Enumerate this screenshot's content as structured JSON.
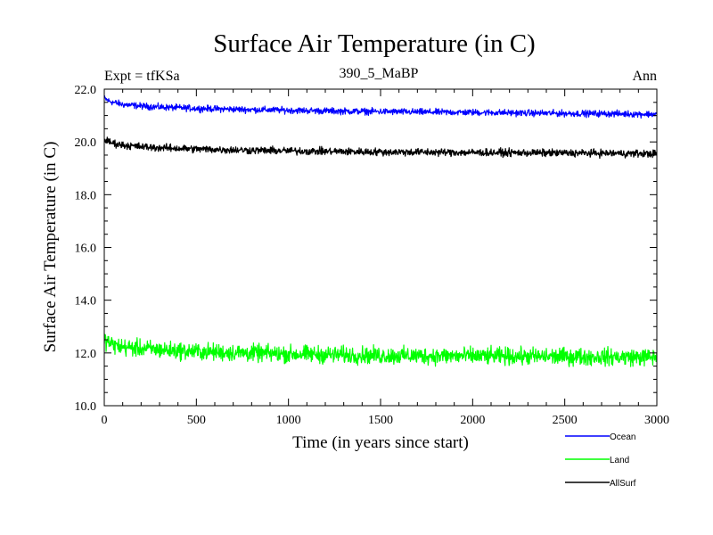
{
  "chart_data": {
    "type": "line",
    "title": "Surface Air Temperature (in C)",
    "subtitle_left": "Expt = tfKSa",
    "subtitle_center": "390_5_MaBP",
    "subtitle_right": "Ann",
    "xlabel": "Time (in years since start)",
    "ylabel": "Surface Air Temperature (in C)",
    "xlim": [
      0,
      3000
    ],
    "ylim": [
      10.0,
      22.0
    ],
    "xticks": [
      0,
      500,
      1000,
      1500,
      2000,
      2500,
      3000
    ],
    "xtick_labels": [
      "0",
      "500",
      "1000",
      "1500",
      "2000",
      "2500",
      "3000"
    ],
    "yticks": [
      10,
      12,
      14,
      16,
      18,
      20,
      22
    ],
    "ytick_labels": [
      "10.0",
      "12.0",
      "14.0",
      "16.0",
      "18.0",
      "20.0",
      "22.0"
    ],
    "grid": false,
    "legend_position": "bottom-right",
    "series": [
      {
        "name": "Ocean",
        "color": "#0000ff",
        "noise": 0.06,
        "x": [
          0,
          25,
          50,
          100,
          200,
          300,
          500,
          750,
          1000,
          1250,
          1500,
          1750,
          2000,
          2250,
          2500,
          2750,
          3000
        ],
        "y": [
          21.65,
          21.55,
          21.5,
          21.42,
          21.36,
          21.32,
          21.27,
          21.23,
          21.2,
          21.17,
          21.15,
          21.13,
          21.12,
          21.1,
          21.08,
          21.07,
          21.05
        ]
      },
      {
        "name": "Land",
        "color": "#00ff00",
        "noise": 0.16,
        "x": [
          0,
          25,
          50,
          100,
          200,
          300,
          500,
          750,
          1000,
          1250,
          1500,
          1750,
          2000,
          2250,
          2500,
          2750,
          3000
        ],
        "y": [
          12.5,
          12.4,
          12.3,
          12.22,
          12.17,
          12.12,
          12.05,
          12.0,
          11.96,
          11.93,
          11.9,
          11.89,
          11.88,
          11.87,
          11.86,
          11.85,
          11.84
        ]
      },
      {
        "name": "AllSurf",
        "color": "#000000",
        "noise": 0.07,
        "x": [
          0,
          25,
          50,
          100,
          200,
          300,
          500,
          750,
          1000,
          1250,
          1500,
          1750,
          2000,
          2250,
          2500,
          2750,
          3000
        ],
        "y": [
          20.1,
          20.0,
          19.95,
          19.88,
          19.82,
          19.78,
          19.73,
          19.69,
          19.66,
          19.64,
          19.62,
          19.61,
          19.6,
          19.59,
          19.58,
          19.57,
          19.55
        ]
      }
    ]
  }
}
